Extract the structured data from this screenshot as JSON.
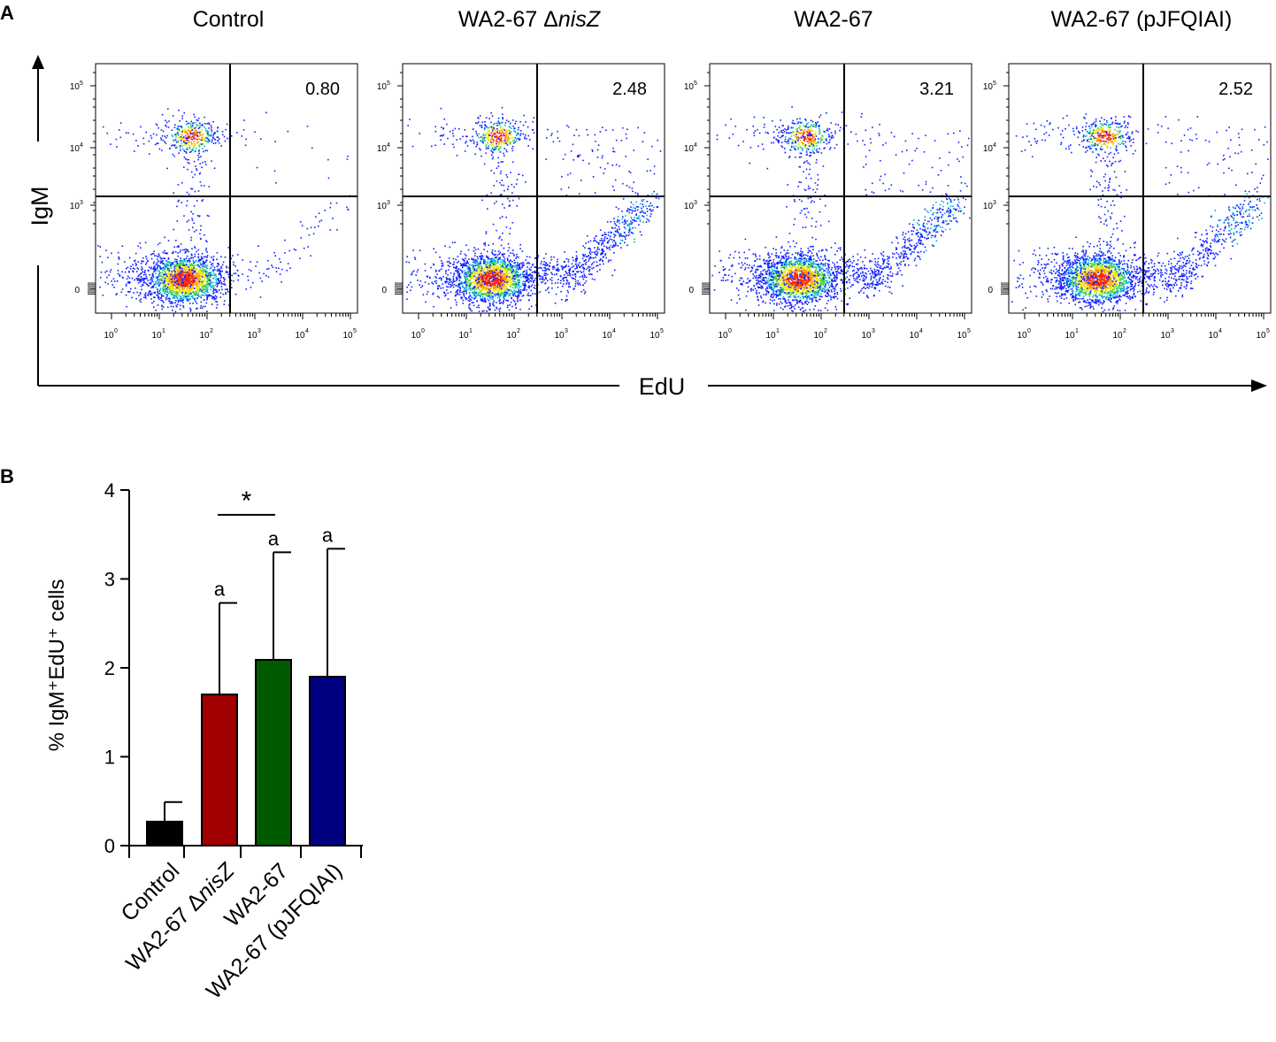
{
  "panel_a": {
    "letter": "A",
    "x_axis_label": "EdU",
    "y_axis_label": "IgM",
    "x_tick_labels": [
      "10",
      "10",
      "10",
      "10",
      "10",
      "10"
    ],
    "x_tick_exponents": [
      "0",
      "1",
      "2",
      "3",
      "4",
      "5"
    ],
    "y_tick_labels": [
      "10",
      "10",
      "10",
      "0"
    ],
    "y_tick_exponents": [
      "5",
      "4",
      "3",
      ""
    ],
    "plots": [
      {
        "title_plain": "Control",
        "title_italic": "",
        "upper_right_percent": "0.80",
        "edu_positive_fraction": 0.04
      },
      {
        "title_plain": "WA2-67 Δ",
        "title_italic": "nisZ",
        "upper_right_percent": "2.48",
        "edu_positive_fraction": 0.32
      },
      {
        "title_plain": "WA2-67",
        "title_italic": "",
        "upper_right_percent": "3.21",
        "edu_positive_fraction": 0.3
      },
      {
        "title_plain": "WA2-67 (pJFQIAI)",
        "title_italic": "",
        "upper_right_percent": "2.52",
        "edu_positive_fraction": 0.28
      }
    ]
  },
  "chart_data": {
    "type": "bar",
    "panel_letter": "B",
    "title": "",
    "xlabel": "",
    "ylabel": "% IgM⁺EdU⁺ cells",
    "ylim": [
      0,
      4
    ],
    "yticks": [
      "0",
      "1",
      "2",
      "3",
      "4"
    ],
    "categories": [
      "Control",
      "WA2-67 Δ",
      "WA2-67",
      "WA2-67 (pJFQIAI)"
    ],
    "category_italic_suffix": [
      "",
      "nisZ",
      "",
      ""
    ],
    "values": [
      0.27,
      1.7,
      2.09,
      1.9
    ],
    "error_upper": [
      0.49,
      2.73,
      3.3,
      3.34
    ],
    "colors": [
      "#000000",
      "#a00000",
      "#005a00",
      "#000080"
    ],
    "significance_letters": [
      "",
      "a",
      "a",
      "a"
    ],
    "comparison": {
      "between": [
        1,
        2
      ],
      "label": "*"
    }
  }
}
